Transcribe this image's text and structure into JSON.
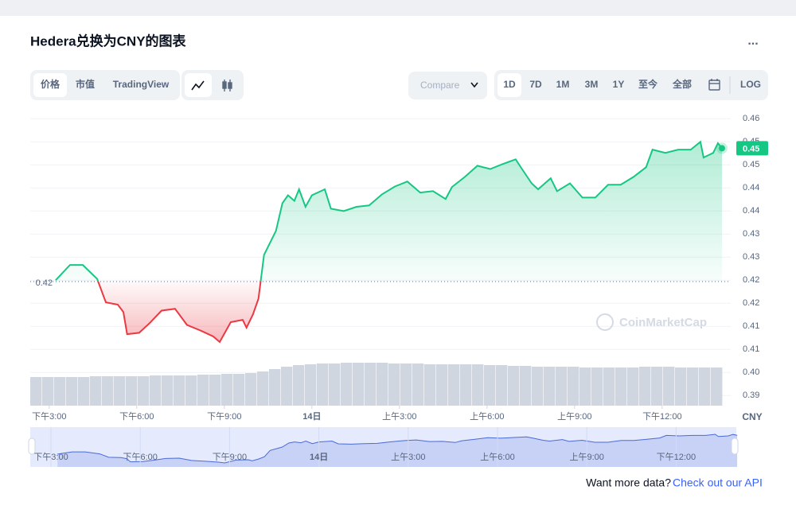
{
  "ui": {
    "title": "Hedera兑换为CNY的图表",
    "more": "...",
    "tabs": [
      "价格",
      "市值",
      "TradingView"
    ],
    "compare": "Compare",
    "ranges": [
      "1D",
      "7D",
      "1M",
      "3M",
      "1Y",
      "至今",
      "全部"
    ],
    "log": "LOG",
    "currency": "CNY",
    "watermark": "CoinMarketCap",
    "footer_text": "Want more data?",
    "footer_link": "Check out our API"
  },
  "chart_data": {
    "type": "line",
    "up_color": "#16c784",
    "down_color": "#ea3943",
    "grid": true,
    "xlim": [
      -0.65,
      23.35
    ],
    "xticks": [
      {
        "value": 0,
        "label": "下午3:00"
      },
      {
        "value": 3,
        "label": "下午6:00"
      },
      {
        "value": 6,
        "label": "下午9:00"
      },
      {
        "value": 9,
        "label": "14日"
      },
      {
        "value": 12,
        "label": "上午3:00"
      },
      {
        "value": 15,
        "label": "上午6:00"
      },
      {
        "value": 18,
        "label": "上午9:00"
      },
      {
        "value": 21,
        "label": "下午12:00"
      }
    ],
    "ylim": [
      0.3928,
      0.4566
    ],
    "yticks": [
      {
        "value": 0.455,
        "label": "0.46"
      },
      {
        "value": 0.45,
        "label": "0.45"
      },
      {
        "value": 0.445,
        "label": "0.45"
      },
      {
        "value": 0.44,
        "label": "0.44"
      },
      {
        "value": 0.435,
        "label": "0.44"
      },
      {
        "value": 0.43,
        "label": "0.43"
      },
      {
        "value": 0.425,
        "label": "0.43"
      },
      {
        "value": 0.42,
        "label": "0.42"
      },
      {
        "value": 0.415,
        "label": "0.42"
      },
      {
        "value": 0.41,
        "label": "0.41"
      },
      {
        "value": 0.405,
        "label": "0.41"
      },
      {
        "value": 0.4,
        "label": "0.40"
      },
      {
        "value": 0.395,
        "label": "0.39"
      }
    ],
    "x": [
      0.22,
      0.71,
      1.15,
      1.64,
      1.94,
      2.35,
      2.54,
      2.67,
      3.08,
      3.44,
      3.85,
      4.31,
      4.72,
      5.18,
      5.62,
      5.84,
      6.22,
      6.63,
      6.76,
      6.98,
      7.17,
      7.36,
      7.77,
      7.99,
      8.18,
      8.4,
      8.56,
      8.78,
      9.0,
      9.44,
      9.65,
      10.09,
      10.53,
      10.96,
      11.4,
      11.84,
      12.27,
      12.71,
      13.15,
      13.58,
      13.8,
      14.24,
      14.67,
      15.11,
      15.55,
      15.98,
      16.2,
      16.53,
      16.75,
      17.18,
      17.4,
      17.84,
      18.27,
      18.71,
      19.15,
      19.58,
      20.02,
      20.45,
      20.67,
      21.11,
      21.55,
      21.98,
      22.31,
      22.42,
      22.75,
      22.91,
      23.05
    ],
    "values": [
      0.42,
      0.4233,
      0.4233,
      0.4203,
      0.4152,
      0.4147,
      0.4131,
      0.4083,
      0.4086,
      0.4107,
      0.4134,
      0.4138,
      0.4103,
      0.4091,
      0.4078,
      0.4066,
      0.4109,
      0.4114,
      0.4097,
      0.4126,
      0.416,
      0.4255,
      0.4307,
      0.4367,
      0.4384,
      0.4372,
      0.4397,
      0.4359,
      0.4384,
      0.4397,
      0.4355,
      0.435,
      0.4359,
      0.4362,
      0.4386,
      0.4403,
      0.4414,
      0.439,
      0.4393,
      0.4376,
      0.4402,
      0.4424,
      0.4448,
      0.4441,
      0.4452,
      0.4462,
      0.4441,
      0.441,
      0.4397,
      0.4421,
      0.4393,
      0.441,
      0.4379,
      0.4379,
      0.4407,
      0.4407,
      0.4424,
      0.4445,
      0.4483,
      0.4476,
      0.4483,
      0.4483,
      0.45,
      0.4466,
      0.4476,
      0.4497,
      0.4486
    ],
    "reference": {
      "value": 0.4197,
      "label": "0.42"
    },
    "current": {
      "value": 0.4486,
      "label": "0.45"
    },
    "volume": {
      "color": "#cfd6e0",
      "ylim": [
        0,
        60
      ],
      "values": [
        36,
        36,
        36,
        36,
        36,
        37,
        37,
        37,
        37,
        37,
        38,
        38,
        38,
        38,
        39,
        39,
        40,
        40,
        41,
        43,
        46,
        49,
        51,
        52,
        53,
        53,
        54,
        54,
        54,
        54,
        53,
        53,
        53,
        52,
        52,
        52,
        52,
        52,
        51,
        51,
        50,
        50,
        49,
        49,
        49,
        49,
        48,
        48,
        48,
        48,
        48,
        49,
        49,
        49,
        48,
        48,
        48,
        48
      ]
    }
  }
}
